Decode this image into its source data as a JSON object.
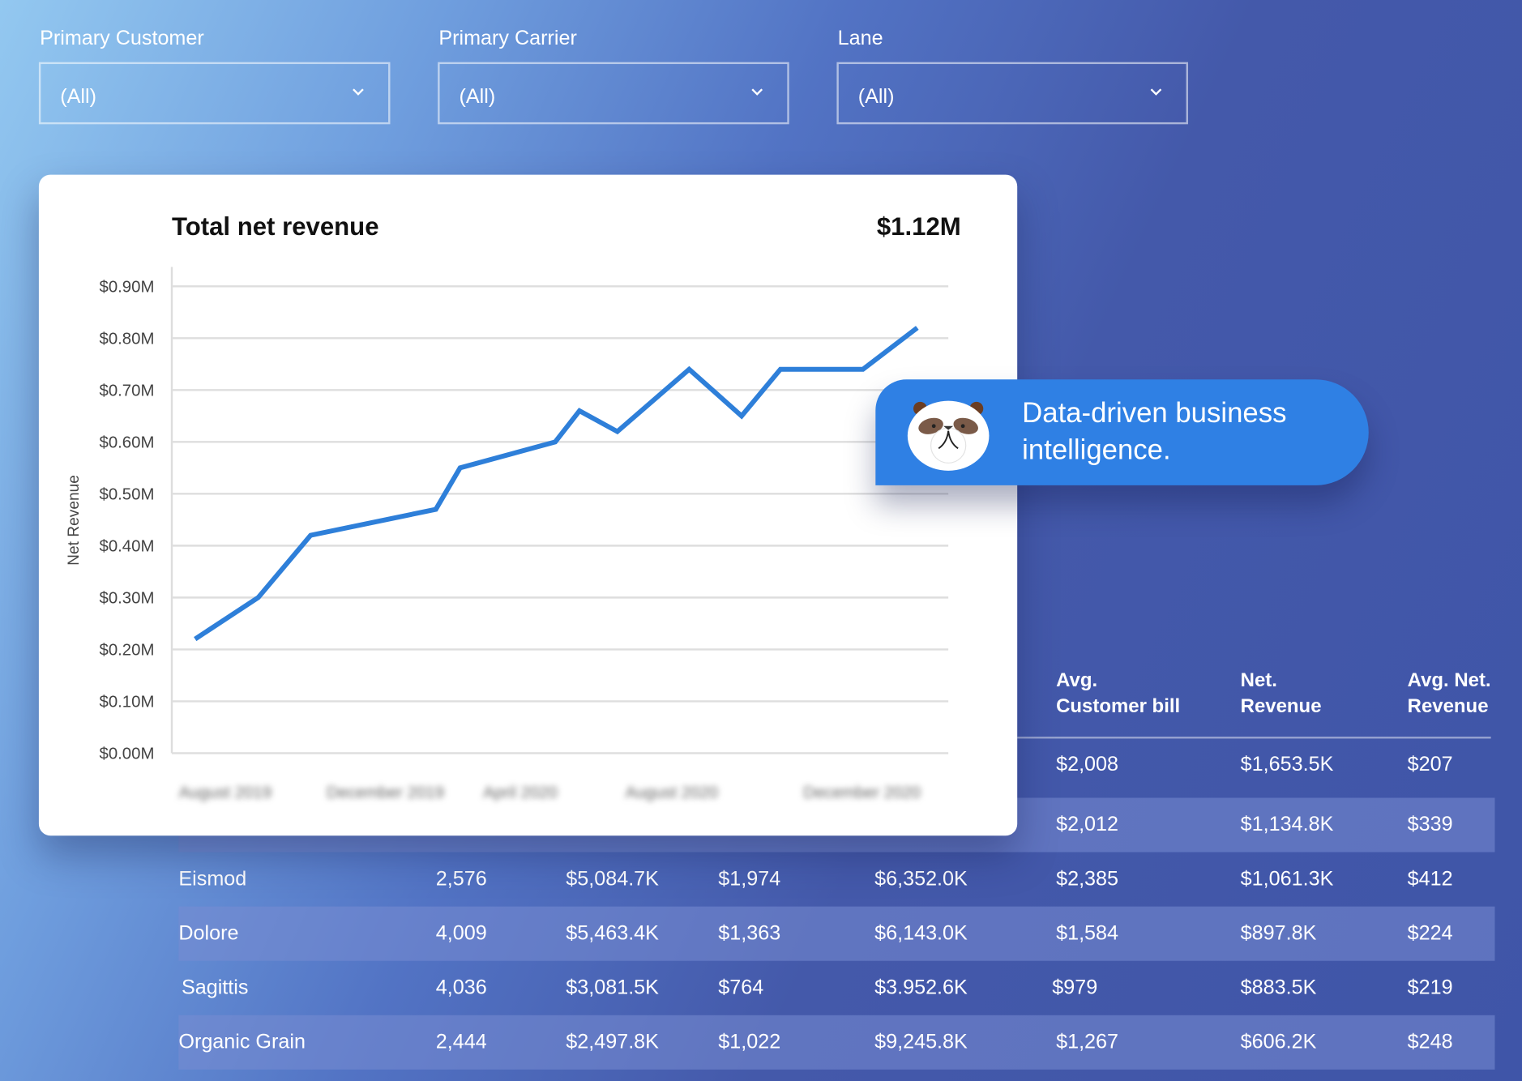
{
  "filters": [
    {
      "label": "Primary Customer",
      "value": "(All)"
    },
    {
      "label": "Primary Carrier",
      "value": "(All)"
    },
    {
      "label": "Lane",
      "value": "(All)"
    }
  ],
  "card": {
    "title": "Total net revenue",
    "total": "$1.12M"
  },
  "bubble": {
    "line1": "Data-driven business",
    "line2": "intelligence.",
    "icon": "panda-mascot-icon"
  },
  "colors": {
    "accent": "#2f80e4",
    "line": "#2e7fd9"
  },
  "chart_data": {
    "type": "line",
    "title": "Total net revenue",
    "ylabel": "Net Revenue",
    "xlabel": "",
    "ylim": [
      0,
      0.9
    ],
    "yticks": [
      "$0.00M",
      "$0.10M",
      "$0.20M",
      "$0.30M",
      "$0.40M",
      "$0.50M",
      "$0.60M",
      "$0.70M",
      "$0.80M",
      "$0.90M"
    ],
    "xticks": [
      "August 2019",
      "December 2019",
      "April 2020",
      "August 2020",
      "December 2020"
    ],
    "xticks_blurred": true,
    "grid": true,
    "values": [
      0.22,
      0.3,
      0.42,
      0.47,
      0.55,
      0.6,
      0.66,
      0.62,
      0.74,
      0.65,
      0.74,
      0.74,
      0.82
    ]
  },
  "table": {
    "headers": [
      {
        "l1": "Avg.",
        "l2": "Customer bill"
      },
      {
        "l1": "Net.",
        "l2": "Revenue"
      },
      {
        "l1": "Avg. Net.",
        "l2": "Revenue"
      }
    ],
    "rows": [
      {
        "cells": [
          "",
          "",
          "",
          "",
          "",
          "$2,008",
          "$1,653.5K",
          "$207"
        ]
      },
      {
        "cells": [
          "",
          "",
          "",
          "",
          "",
          "$2,012",
          "$1,134.8K",
          "$339"
        ]
      },
      {
        "cells": [
          "Eismod",
          "2,576",
          "$5,084.7K",
          "$1,974",
          "$6,352.0K",
          "$2,385",
          "$1,061.3K",
          "$412"
        ]
      },
      {
        "cells": [
          "Dolore",
          "4,009",
          "$5,463.4K",
          "$1,363",
          "$6,143.0K",
          "$1,584",
          "$897.8K",
          "$224"
        ]
      },
      {
        "cells": [
          "Sagittis",
          "4,036",
          "$3,081.5K",
          "$764",
          "$3.952.6K",
          "$979",
          "$883.5K",
          "$219"
        ]
      },
      {
        "cells": [
          "Organic Grain",
          "2,444",
          "$2,497.8K",
          "$1,022",
          "$9,245.8K",
          "$1,267",
          "$606.2K",
          "$248"
        ]
      }
    ]
  }
}
